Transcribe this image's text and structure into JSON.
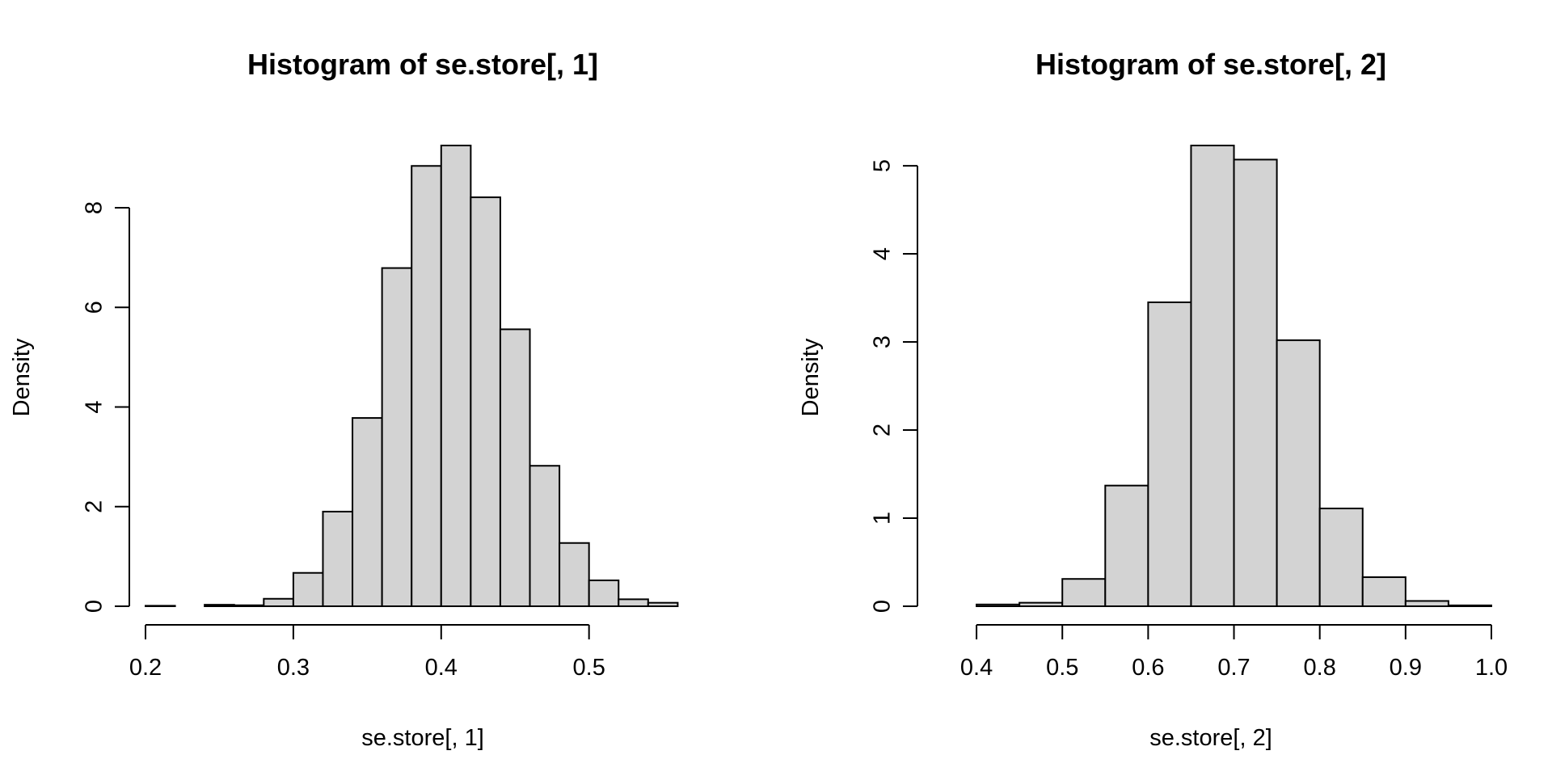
{
  "chart_data": [
    {
      "type": "bar",
      "title": "Histogram of se.store[, 1]",
      "xlabel": "se.store[, 1]",
      "ylabel": "Density",
      "bar_color": "#d3d3d3",
      "xlim": [
        0.2,
        0.58
      ],
      "ylim": [
        0,
        9.25
      ],
      "x_ticks": [
        0.2,
        0.3,
        0.4,
        0.5
      ],
      "x_tick_labels": [
        "0.2",
        "0.3",
        "0.4",
        "0.5"
      ],
      "y_ticks": [
        0,
        2,
        4,
        6,
        8
      ],
      "y_tick_labels": [
        "0",
        "2",
        "4",
        "6",
        "8"
      ],
      "bin_edges": [
        0.2,
        0.22,
        0.24,
        0.26,
        0.28,
        0.3,
        0.32,
        0.34,
        0.36,
        0.38,
        0.4,
        0.42,
        0.44,
        0.46,
        0.48,
        0.5,
        0.52,
        0.54,
        0.56
      ],
      "values": [
        0.01,
        0.0,
        0.03,
        0.02,
        0.15,
        0.67,
        1.9,
        3.78,
        6.79,
        8.84,
        9.25,
        8.21,
        5.56,
        2.82,
        1.27,
        0.52,
        0.14,
        0.07
      ]
    },
    {
      "type": "bar",
      "title": "Histogram of se.store[, 2]",
      "xlabel": "se.store[, 2]",
      "ylabel": "Density",
      "bar_color": "#d3d3d3",
      "xlim": [
        0.35,
        1.0
      ],
      "ylim": [
        0,
        5.23
      ],
      "x_ticks": [
        0.4,
        0.5,
        0.6,
        0.7,
        0.8,
        0.9,
        1.0
      ],
      "x_tick_labels": [
        "0.4",
        "0.5",
        "0.6",
        "0.7",
        "0.8",
        "0.9",
        "1.0"
      ],
      "y_ticks": [
        0,
        1,
        2,
        3,
        4,
        5
      ],
      "y_tick_labels": [
        "0",
        "1",
        "2",
        "3",
        "4",
        "5"
      ],
      "bin_edges": [
        0.35,
        0.4,
        0.45,
        0.5,
        0.55,
        0.6,
        0.65,
        0.7,
        0.75,
        0.8,
        0.85,
        0.9,
        0.95,
        1.0
      ],
      "values": [
        0.0,
        0.02,
        0.04,
        0.31,
        1.37,
        3.45,
        5.23,
        5.07,
        3.02,
        1.11,
        0.33,
        0.06,
        0.01
      ]
    }
  ]
}
